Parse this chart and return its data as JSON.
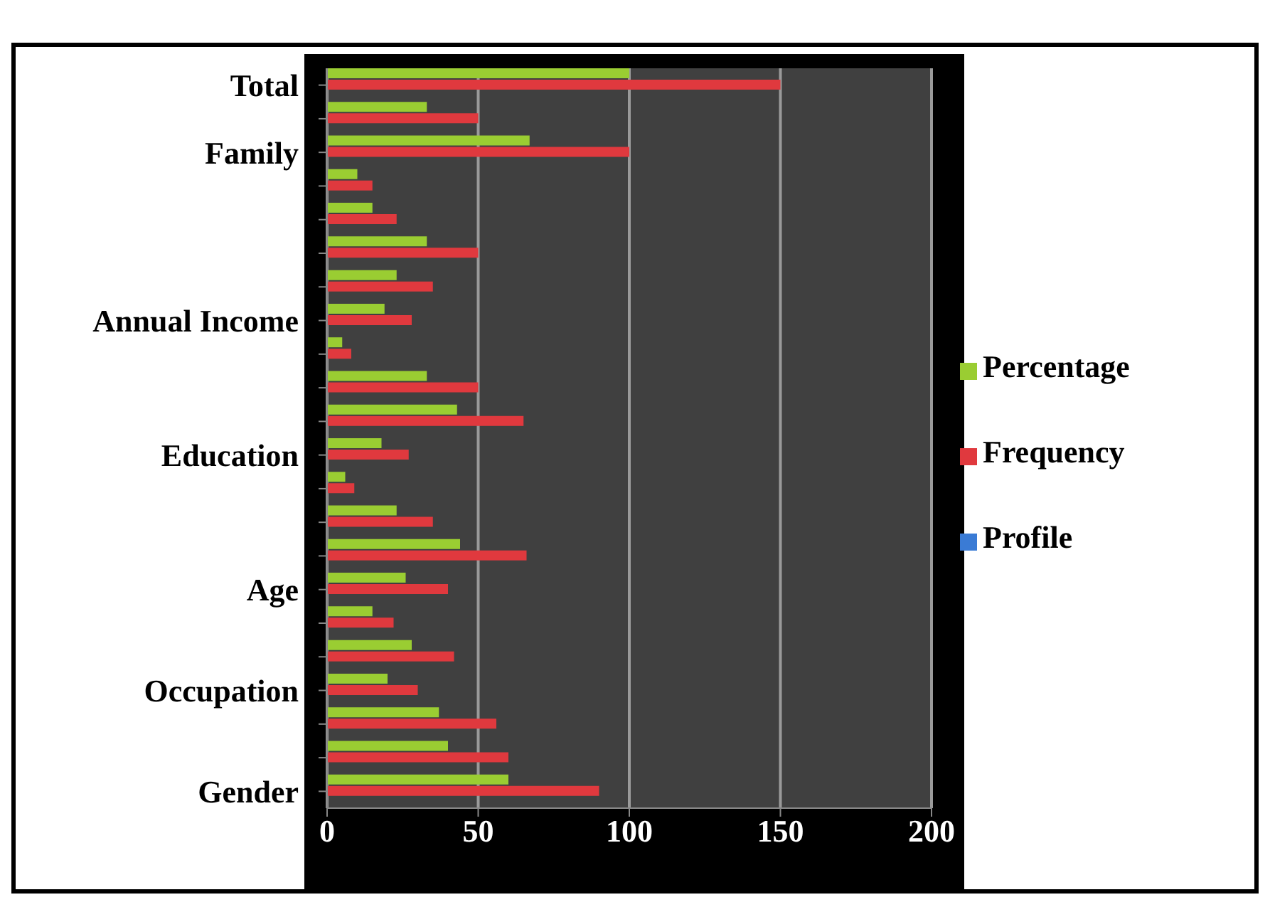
{
  "chart_data": {
    "type": "bar",
    "orientation": "horizontal",
    "categories": [
      "Total",
      null,
      "Family",
      null,
      null,
      null,
      null,
      "Annual Income",
      null,
      null,
      null,
      "Education",
      null,
      null,
      null,
      "Age",
      null,
      null,
      "Occupation",
      null,
      null,
      "Gender"
    ],
    "series": [
      {
        "name": "Percentage",
        "color": "#9acd32",
        "values": [
          100,
          33,
          67,
          10,
          15,
          33,
          23,
          19,
          5,
          33,
          43,
          18,
          6,
          23,
          44,
          26,
          15,
          28,
          20,
          37,
          40,
          60
        ]
      },
      {
        "name": "Frequency",
        "color": "#e0393e",
        "values": [
          150,
          50,
          100,
          15,
          23,
          50,
          35,
          28,
          8,
          50,
          65,
          27,
          9,
          35,
          66,
          40,
          22,
          42,
          30,
          56,
          60,
          90
        ]
      },
      {
        "name": "Profile",
        "color": "#3a7bd5",
        "values": [
          null,
          null,
          null,
          null,
          null,
          null,
          null,
          null,
          null,
          null,
          null,
          null,
          null,
          null,
          null,
          null,
          null,
          null,
          null,
          null,
          null,
          null
        ]
      }
    ],
    "xlim": [
      0,
      200
    ],
    "xticks": [
      0,
      50,
      100,
      150,
      200
    ],
    "grid": "x",
    "legend": "right"
  }
}
